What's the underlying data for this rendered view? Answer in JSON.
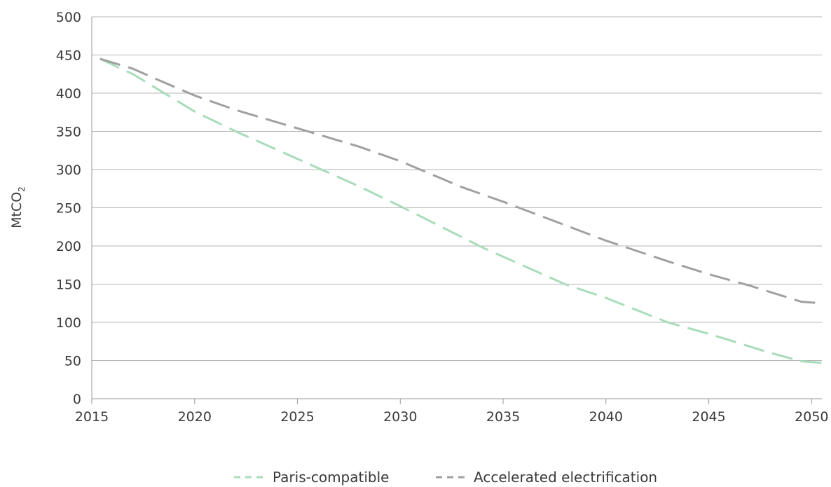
{
  "chart_data": {
    "type": "line",
    "ylabel": "MtCO",
    "ylabel_sub": "2",
    "xlim": [
      2015,
      2050.5
    ],
    "ylim": [
      0,
      500
    ],
    "x_ticks": [
      "2015",
      "2020",
      "2025",
      "2030",
      "2035",
      "2040",
      "2045",
      "2050"
    ],
    "y_ticks": [
      "0",
      "50",
      "100",
      "150",
      "200",
      "250",
      "300",
      "350",
      "400",
      "450",
      "500"
    ],
    "grid": true,
    "legend_position": "bottom-center",
    "series": [
      {
        "name": "Paris-compatible",
        "color": "#a8dcbb",
        "x": [
          2015.4,
          2017,
          2020,
          2022,
          2025,
          2028,
          2030,
          2034,
          2038,
          2040,
          2043,
          2045,
          2048,
          2049.5,
          2050.5
        ],
        "values": [
          445,
          425,
          376,
          350,
          314,
          278,
          252,
          198,
          150,
          132,
          100,
          85,
          60,
          49,
          47
        ]
      },
      {
        "name": "Accelerated electrification",
        "color": "#a0a0a0",
        "x": [
          2015.4,
          2017,
          2018,
          2020,
          2022,
          2024,
          2025,
          2028,
          2030,
          2033,
          2035,
          2040,
          2043,
          2045,
          2047,
          2049.5,
          2050.5
        ],
        "values": [
          445,
          432,
          420,
          397,
          378,
          362,
          354,
          330,
          311,
          277,
          258,
          207,
          180,
          163,
          148,
          127,
          125
        ]
      }
    ]
  }
}
